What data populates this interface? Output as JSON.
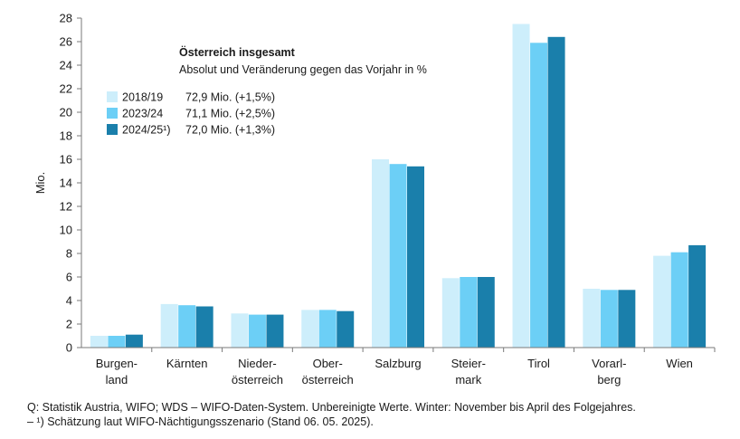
{
  "chart_data": {
    "type": "bar",
    "ylabel": "Mio.",
    "ylim": [
      0,
      28
    ],
    "yticks": [
      0,
      2,
      4,
      6,
      8,
      10,
      12,
      14,
      16,
      18,
      20,
      22,
      24,
      26,
      28
    ],
    "grid": false,
    "categories": [
      [
        "Burgen-",
        "land"
      ],
      [
        "Kärnten"
      ],
      [
        "Nieder-",
        "österreich"
      ],
      [
        "Ober-",
        "österreich"
      ],
      [
        "Salzburg"
      ],
      [
        "Steier-",
        "mark"
      ],
      [
        "Tirol"
      ],
      [
        "Vorarl-",
        "berg"
      ],
      [
        "Wien"
      ]
    ],
    "series": [
      {
        "name": "2018/19",
        "color": "#cdeefb",
        "values": [
          1.0,
          3.7,
          2.9,
          3.2,
          16.0,
          5.9,
          27.5,
          5.0,
          7.8
        ]
      },
      {
        "name": "2023/24",
        "color": "#6ccff6",
        "values": [
          1.0,
          3.6,
          2.8,
          3.2,
          15.6,
          6.0,
          25.9,
          4.9,
          8.1
        ]
      },
      {
        "name": "2024/25¹)",
        "color": "#1a7fab",
        "values": [
          1.1,
          3.5,
          2.8,
          3.1,
          15.4,
          6.0,
          26.4,
          4.9,
          8.7
        ]
      }
    ],
    "annotation": {
      "title": "Österreich insgesamt",
      "subtitle": "Absolut und Veränderung gegen das Vorjahr in %",
      "legend_values": [
        "72,9 Mio. (+1,5%)",
        "71,1 Mio. (+2,5%)",
        "72,0 Mio. (+1,3%)"
      ]
    }
  },
  "footnotes": {
    "source": "Q: Statistik Austria, WIFO; WDS – WIFO-Daten-System. Unbereinigte Werte. Winter: November bis April des Folgejahres.",
    "note": "– ¹) Schätzung laut WIFO-Nächtigungsszenario (Stand 06. 05. 2025)."
  }
}
